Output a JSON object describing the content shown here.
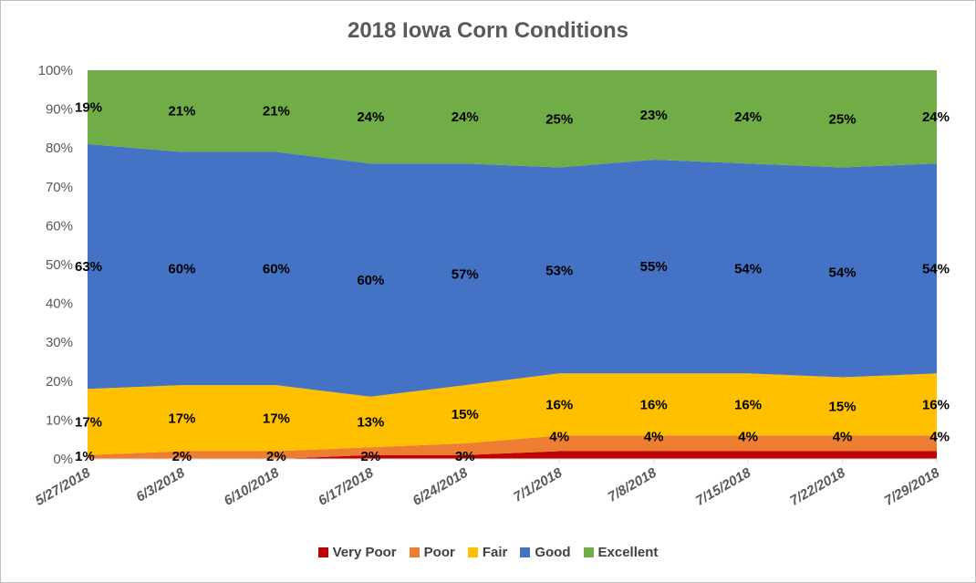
{
  "chart_data": {
    "type": "area",
    "stacked": true,
    "title": "2018 Iowa Corn Conditions",
    "xlabel": "",
    "ylabel": "",
    "ylim": [
      0,
      100
    ],
    "y_ticks": [
      "0%",
      "10%",
      "20%",
      "30%",
      "40%",
      "50%",
      "60%",
      "70%",
      "80%",
      "90%",
      "100%"
    ],
    "categories": [
      "5/27/2018",
      "6/3/2018",
      "6/10/2018",
      "6/17/2018",
      "6/24/2018",
      "7/1/2018",
      "7/8/2018",
      "7/15/2018",
      "7/22/2018",
      "7/29/2018"
    ],
    "legend_position": "bottom",
    "grid": false,
    "series": [
      {
        "name": "Very Poor",
        "color": "#c00000",
        "values": [
          0,
          0,
          0,
          1,
          1,
          2,
          2,
          2,
          2,
          2
        ],
        "labels": [
          "",
          "",
          "",
          "",
          "",
          "",
          "",
          "",
          "",
          ""
        ]
      },
      {
        "name": "Poor",
        "color": "#ed7d31",
        "values": [
          1,
          2,
          2,
          2,
          3,
          4,
          4,
          4,
          4,
          4
        ],
        "labels": [
          "1%",
          "2%",
          "2%",
          "2%",
          "3%",
          "4%",
          "4%",
          "4%",
          "4%",
          "4%"
        ]
      },
      {
        "name": "Fair",
        "color": "#ffc000",
        "values": [
          17,
          17,
          17,
          13,
          15,
          16,
          16,
          16,
          15,
          16
        ],
        "labels": [
          "17%",
          "17%",
          "17%",
          "13%",
          "15%",
          "16%",
          "16%",
          "16%",
          "15%",
          "16%"
        ]
      },
      {
        "name": "Good",
        "color": "#4472c4",
        "values": [
          63,
          60,
          60,
          60,
          57,
          53,
          55,
          54,
          54,
          54
        ],
        "labels": [
          "63%",
          "60%",
          "60%",
          "60%",
          "57%",
          "53%",
          "55%",
          "54%",
          "54%",
          "54%"
        ]
      },
      {
        "name": "Excellent",
        "color": "#70ad47",
        "values": [
          19,
          21,
          21,
          24,
          24,
          25,
          23,
          24,
          25,
          24
        ],
        "labels": [
          "19%",
          "21%",
          "21%",
          "24%",
          "24%",
          "25%",
          "23%",
          "24%",
          "25%",
          "24%"
        ]
      }
    ]
  }
}
